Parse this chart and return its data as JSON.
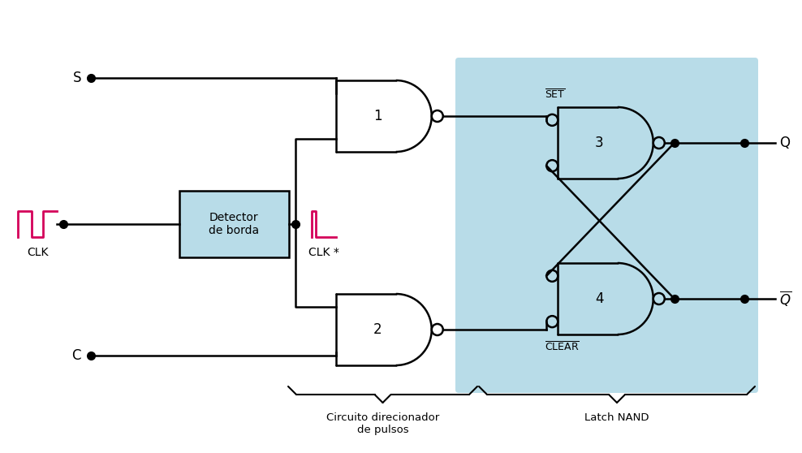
{
  "bg_color": "#ffffff",
  "latch_bg_color": "#b8dce8",
  "pink_color": "#d4005a",
  "gate_fill": "#ffffff",
  "detector_fill": "#b8dce8",
  "label_S": "S",
  "label_C": "C",
  "label_CLK": "CLK",
  "label_CLK_star": "CLK *",
  "label_SET": "SET",
  "label_CLEAR": "CLEAR",
  "label_Q": "Q",
  "label_1": "1",
  "label_2": "2",
  "label_3": "3",
  "label_4": "4",
  "label_detector": "Detector\nde borda",
  "label_circuit": "Circuito direcionador\nde pulsos",
  "label_latch": "Latch NAND",
  "figsize": [
    9.88,
    5.58
  ],
  "dpi": 100
}
